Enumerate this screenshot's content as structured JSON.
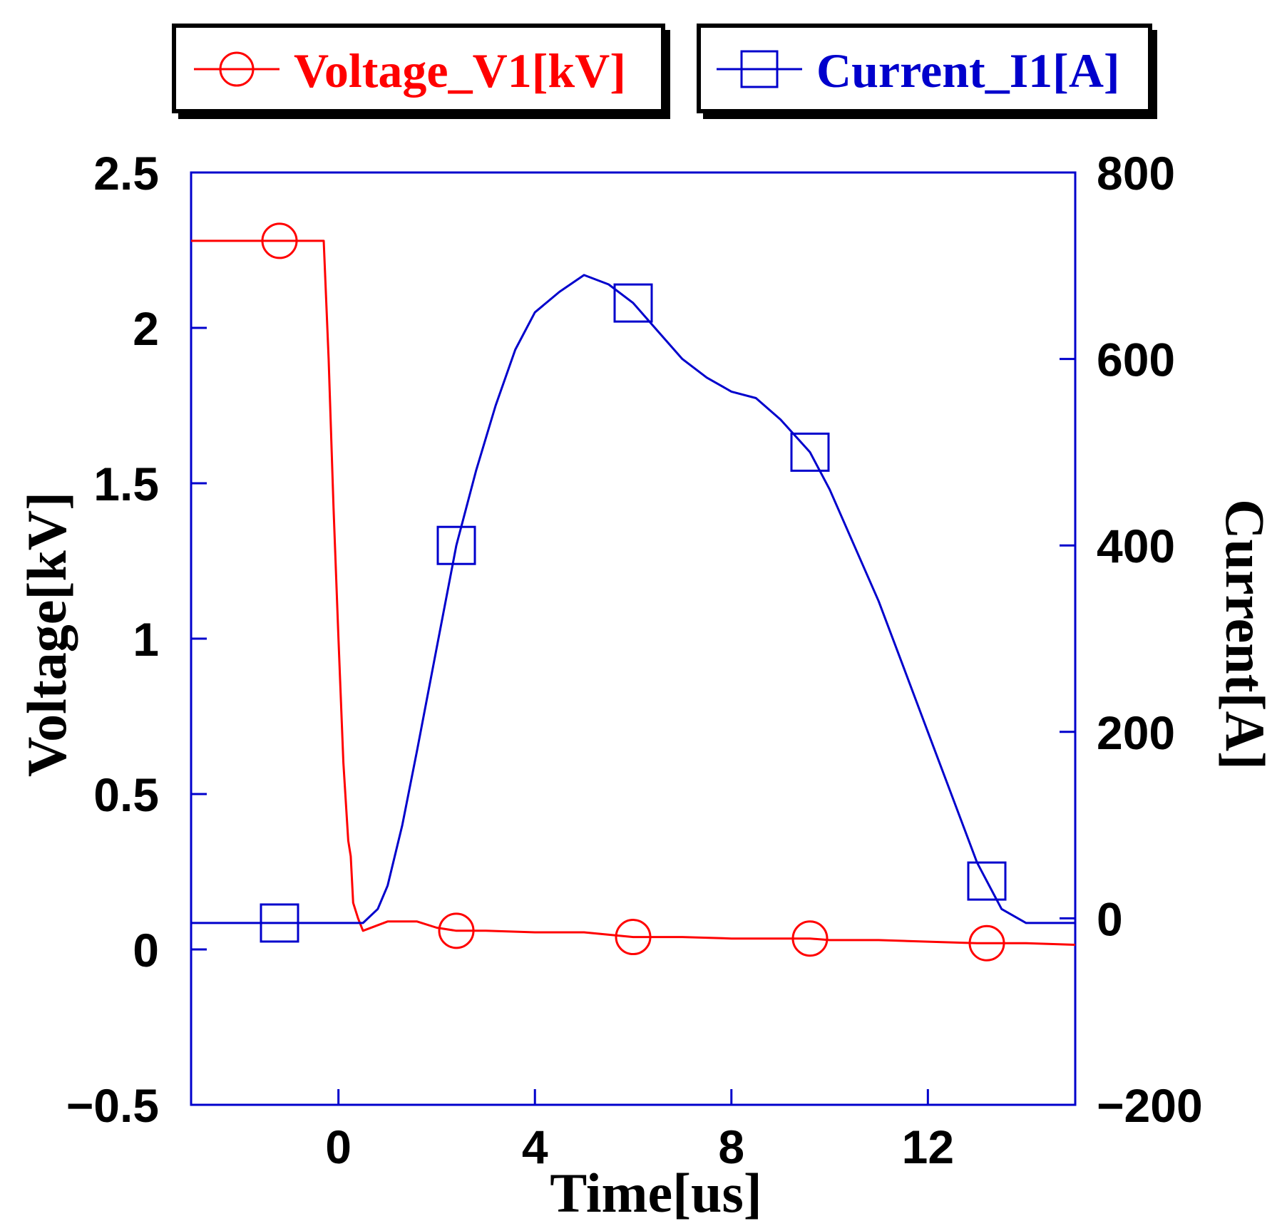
{
  "chart_data": {
    "type": "line",
    "xlabel": "Time[us]",
    "ylabel": "Voltage[kV]",
    "y2label": "Current[A]",
    "xlim": [
      -3,
      15
    ],
    "ylim": [
      -0.5,
      2.5
    ],
    "y2lim": [
      -200,
      800
    ],
    "xticks": [
      0,
      4,
      8,
      12
    ],
    "xtick_labels": [
      "0",
      "4",
      "8",
      "12"
    ],
    "yticks": [
      -0.5,
      0,
      0.5,
      1,
      1.5,
      2,
      2.5
    ],
    "ytick_labels": [
      "−0.5",
      "0",
      "0.5",
      "1",
      "1.5",
      "2",
      "2.5"
    ],
    "y2ticks": [
      -200,
      0,
      200,
      400,
      600,
      800
    ],
    "y2tick_labels": [
      "−200",
      "0",
      "200",
      "400",
      "600",
      "800"
    ],
    "legend_position": "top",
    "series": [
      {
        "name": "Voltage_V1[kV]",
        "axis": "left",
        "color": "#ff0000",
        "marker": "circle",
        "x": [
          -3.0,
          -2.0,
          -1.0,
          -0.3,
          -0.2,
          -0.1,
          0.0,
          0.1,
          0.2,
          0.25,
          0.3,
          0.4,
          0.5,
          1.0,
          1.6,
          2.0,
          2.4,
          3.0,
          4.0,
          5.0,
          6.0,
          7.0,
          8.0,
          9.0,
          9.6,
          10.0,
          11.0,
          12.0,
          13.0,
          13.5,
          14.0,
          15.0
        ],
        "values": [
          2.28,
          2.28,
          2.28,
          2.28,
          1.9,
          1.42,
          1.0,
          0.6,
          0.35,
          0.3,
          0.15,
          0.1,
          0.06,
          0.09,
          0.09,
          0.07,
          0.06,
          0.06,
          0.055,
          0.055,
          0.04,
          0.04,
          0.035,
          0.035,
          0.035,
          0.03,
          0.03,
          0.025,
          0.02,
          0.02,
          0.02,
          0.015
        ],
        "marker_x": [
          -1.2,
          2.4,
          6.0,
          9.6,
          13.2
        ]
      },
      {
        "name": "Current_I1[A]",
        "axis": "right",
        "color": "#0000cc",
        "marker": "square",
        "x": [
          -3.0,
          -1.0,
          0.0,
          0.5,
          0.8,
          1.0,
          1.3,
          1.6,
          2.0,
          2.4,
          2.8,
          3.2,
          3.6,
          4.0,
          4.5,
          5.0,
          5.5,
          6.0,
          6.5,
          7.0,
          7.5,
          8.0,
          8.5,
          9.0,
          9.6,
          10.0,
          10.5,
          11.0,
          11.5,
          12.0,
          12.5,
          13.0,
          13.5,
          14.0,
          15.0
        ],
        "values": [
          -5,
          -5,
          -5,
          -5,
          10,
          35,
          100,
          180,
          290,
          400,
          480,
          550,
          610,
          650,
          672,
          690,
          680,
          660,
          630,
          600,
          580,
          565,
          558,
          535,
          500,
          460,
          400,
          340,
          270,
          200,
          130,
          60,
          10,
          -5,
          -5
        ],
        "marker_x": [
          -1.2,
          2.4,
          6.0,
          9.6,
          13.2
        ]
      }
    ]
  }
}
